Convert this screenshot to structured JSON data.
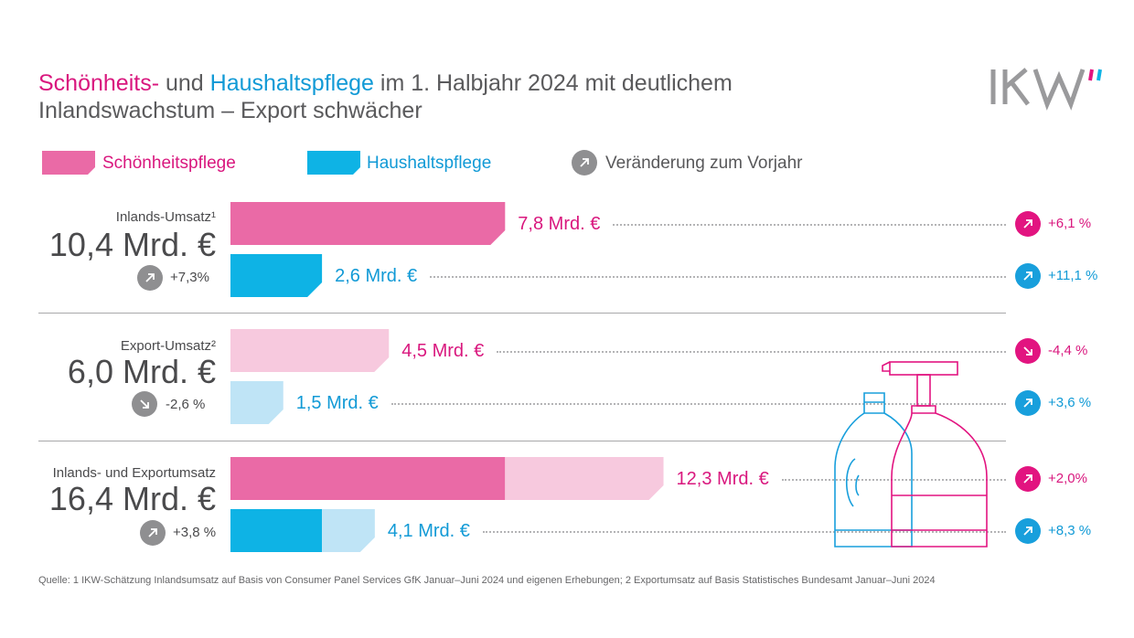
{
  "title": {
    "part1": "Schönheits-",
    "part2": " und ",
    "part3": "Haushaltspflege",
    "part4": " im 1. Halbjahr 2024 mit deutlichem",
    "line2": "Inlandswachstum – Export schwächer"
  },
  "logo_text": "IKW",
  "legend": {
    "beauty": "Schönheitspflege",
    "household": "Haushaltspflege",
    "change": "Veränderung zum Vorjahr"
  },
  "colors": {
    "beauty": "#ea6aa6",
    "beauty_light": "#f7c9de",
    "household": "#0eb3e5",
    "household_light": "#bfe4f6",
    "pink_text": "#d9177e",
    "blue_text": "#119ad6",
    "pink_circle": "#e21480",
    "blue_circle": "#189fdc",
    "gray_circle": "#8f8f91"
  },
  "groups": [
    {
      "label": "Inlands-Umsatz¹",
      "total": "10,4 Mrd. €",
      "change": "+7,3%",
      "change_dir": "up"
    },
    {
      "label": "Export-Umsatz²",
      "total": "6,0 Mrd. €",
      "change": "-2,6 %",
      "change_dir": "down"
    },
    {
      "label": "Inlands- und Exportumsatz",
      "total": "16,4 Mrd. €",
      "change": "+3,8 %",
      "change_dir": "up"
    }
  ],
  "chart_data": {
    "type": "bar",
    "orientation": "horizontal",
    "unit": "Mrd. €",
    "bars": [
      {
        "group": "Inlands-Umsatz¹",
        "series": "Schönheitspflege",
        "value": 7.8,
        "label": "7,8 Mrd. €",
        "change": "+6,1 %",
        "change_dir": "up"
      },
      {
        "group": "Inlands-Umsatz¹",
        "series": "Haushaltspflege",
        "value": 2.6,
        "label": "2,6 Mrd. €",
        "change": "+11,1 %",
        "change_dir": "up"
      },
      {
        "group": "Export-Umsatz²",
        "series": "Schönheitspflege",
        "value": 4.5,
        "label": "4,5 Mrd. €",
        "change": "-4,4 %",
        "change_dir": "down"
      },
      {
        "group": "Export-Umsatz²",
        "series": "Haushaltspflege",
        "value": 1.5,
        "label": "1,5 Mrd. €",
        "change": "+3,6 %",
        "change_dir": "up"
      },
      {
        "group": "Inlands- und Exportumsatz",
        "series": "Schönheitspflege",
        "value": 12.3,
        "label": "12,3 Mrd. €",
        "change": "+2,0%",
        "change_dir": "up",
        "stack": [
          7.8,
          4.5
        ]
      },
      {
        "group": "Inlands- und Exportumsatz",
        "series": "Haushaltspflege",
        "value": 4.1,
        "label": "4,1 Mrd. €",
        "change": "+8,3 %",
        "change_dir": "up",
        "stack": [
          2.6,
          1.5
        ]
      }
    ]
  },
  "footnote": "Quelle: 1 IKW-Schätzung Inlandsumsatz auf Basis von Consumer Panel Services GfK Januar–Juni 2024 und eigenen Erhebungen; 2 Exportumsatz auf Basis Statistisches Bundesamt Januar–Juni 2024"
}
